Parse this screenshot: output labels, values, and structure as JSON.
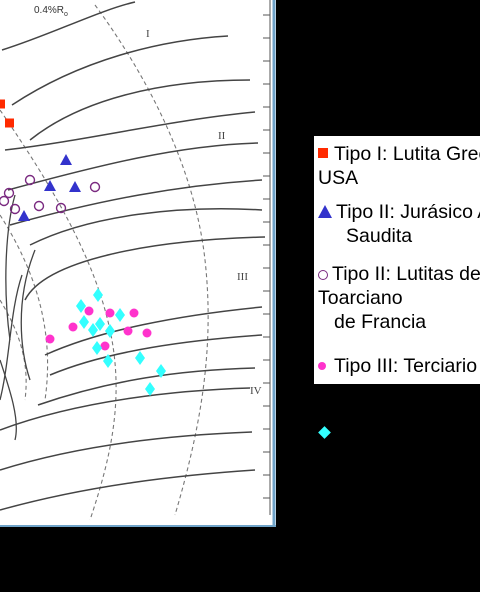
{
  "chart_data": {
    "type": "scatter",
    "title": "",
    "xlabel": "",
    "ylabel": "",
    "annotations": {
      "vitrinite_label": "0.4%R",
      "vitrinite_subscript": "o",
      "zones": [
        "I",
        "II",
        "III",
        "IV"
      ]
    },
    "series": [
      {
        "name": "Tipo I: Lutita Green River USA",
        "marker": "square",
        "color": "#ff2a00",
        "points": [
          [
            0.5,
            104
          ],
          [
            9.5,
            123
          ]
        ]
      },
      {
        "name": "Tipo II: Jurásico Arabia Saudita",
        "marker": "triangle",
        "color": "#3333cc",
        "points": [
          [
            66,
            160
          ],
          [
            50,
            186
          ],
          [
            75,
            187
          ],
          [
            24,
            216
          ]
        ]
      },
      {
        "name": "Tipo II: Lutitas del Toarciano de Francia",
        "marker": "open-circle",
        "color": "#7a2a80",
        "points": [
          [
            30,
            180
          ],
          [
            95,
            187
          ],
          [
            9,
            193
          ],
          [
            4,
            201
          ],
          [
            39,
            206
          ],
          [
            61,
            208
          ],
          [
            15,
            209
          ]
        ]
      },
      {
        "name": "Tipo III: Terciario",
        "marker": "dot",
        "color": "#ff33cc",
        "points": [
          [
            89,
            311
          ],
          [
            110,
            313
          ],
          [
            134,
            313
          ],
          [
            73,
            327
          ],
          [
            128,
            331
          ],
          [
            147,
            333
          ],
          [
            50,
            339
          ],
          [
            105,
            346
          ]
        ]
      },
      {
        "name": "",
        "marker": "diamond",
        "color": "#33ffff",
        "points": [
          [
            98,
            295
          ],
          [
            81,
            306
          ],
          [
            120,
            315
          ],
          [
            84,
            322
          ],
          [
            100,
            324
          ],
          [
            93,
            330
          ],
          [
            110,
            331
          ],
          [
            97,
            348
          ],
          [
            108,
            361
          ],
          [
            140,
            358
          ],
          [
            161,
            371
          ],
          [
            150,
            389
          ]
        ]
      }
    ],
    "legend": {
      "placement": "right",
      "line1": "Tipo I: Lutita Green River",
      "line2": "USA",
      "line3": "Tipo II: Jurásico Arabia",
      "line4": "Saudita",
      "line5": "Tipo II: Lutitas del",
      "line6": "Toarciano",
      "line7": "de Francia",
      "line8": "Tipo III: Terciario"
    },
    "grid": false
  }
}
